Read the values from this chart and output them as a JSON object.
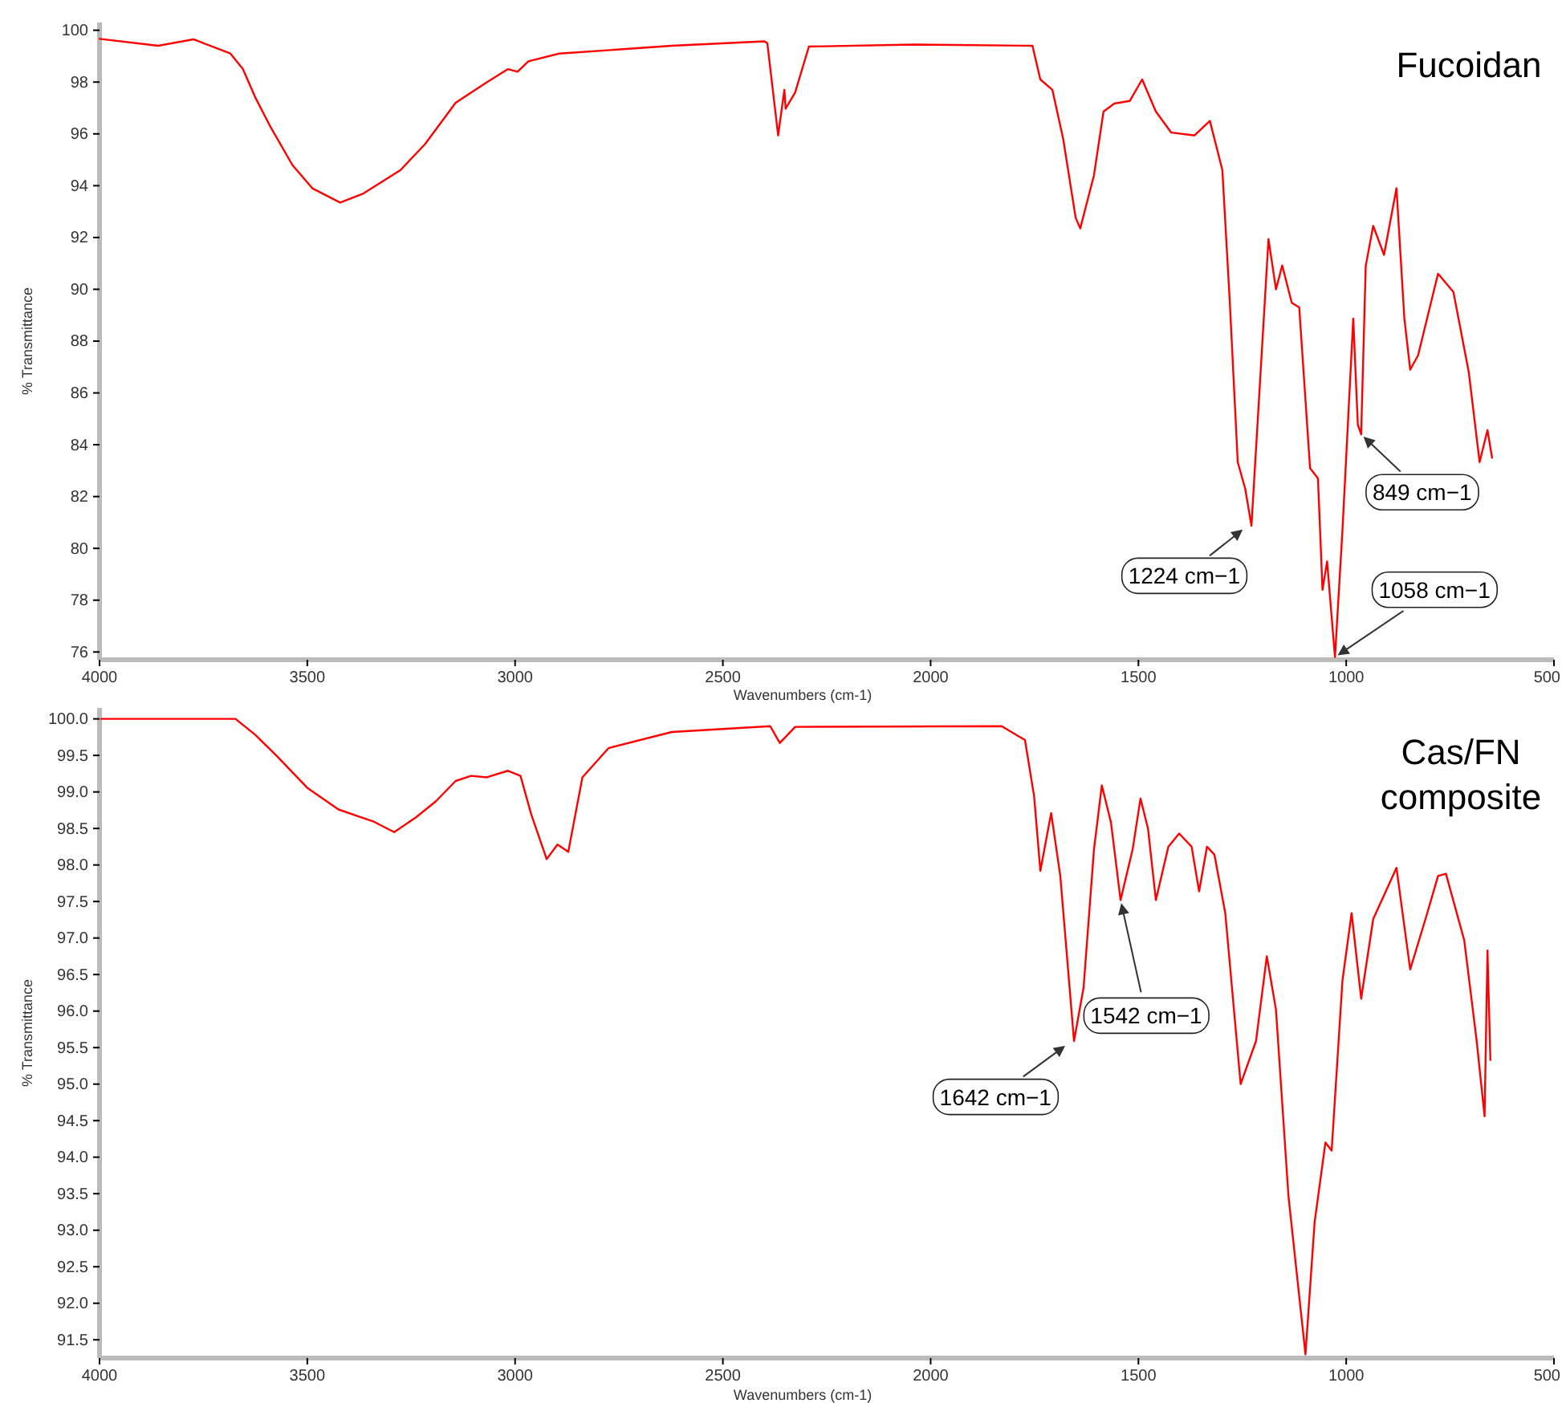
{
  "chart_data": [
    {
      "type": "line",
      "title": "Fucoidan",
      "xlabel": "Wavenumbers (cm-1)",
      "ylabel": "% Transmittance",
      "xlim": [
        4000,
        500
      ],
      "xticks": [
        4000,
        3500,
        3000,
        2500,
        2000,
        1500,
        1000,
        500
      ],
      "ylim": [
        75.7,
        100.3
      ],
      "yticks": [
        76,
        78,
        80,
        82,
        84,
        86,
        88,
        90,
        92,
        94,
        96,
        98,
        100
      ],
      "grid": false,
      "marker": "none",
      "line_style": "solid",
      "series": [
        {
          "color": "#ff0000",
          "x": [
            4000,
            3859,
            3774,
            3685,
            3655,
            3625,
            3588,
            3536,
            3488,
            3421,
            3365,
            3276,
            3217,
            3143,
            3068,
            3017,
            2994,
            2968,
            2894,
            2623,
            2400,
            2393,
            2367,
            2352,
            2349,
            2326,
            2293,
            2041,
            1755,
            1736,
            1707,
            1681,
            1651,
            1640,
            1607,
            1584,
            1558,
            1521,
            1491,
            1458,
            1421,
            1365,
            1328,
            1298,
            1280,
            1261,
            1243,
            1228,
            1206,
            1187,
            1169,
            1154,
            1131,
            1113,
            1087,
            1068,
            1057,
            1046,
            1027,
            1009,
            983,
            972,
            964,
            953,
            935,
            909,
            879,
            860,
            846,
            827,
            779,
            742,
            705,
            679,
            660,
            649
          ],
          "values": [
            99.67,
            99.4,
            99.65,
            99.1,
            98.5,
            97.4,
            96.25,
            94.8,
            93.9,
            93.35,
            93.7,
            94.6,
            95.6,
            97.2,
            97.99,
            98.5,
            98.4,
            98.8,
            99.1,
            99.4,
            99.57,
            99.5,
            95.94,
            97.7,
            96.97,
            97.6,
            99.37,
            99.45,
            99.4,
            98.1,
            97.7,
            95.8,
            92.76,
            92.35,
            94.4,
            96.86,
            97.17,
            97.27,
            98.1,
            96.86,
            96.05,
            95.94,
            96.5,
            94.6,
            89.48,
            83.33,
            82.3,
            80.87,
            86.8,
            91.94,
            90.0,
            90.92,
            89.48,
            89.3,
            83.1,
            82.7,
            78.4,
            79.5,
            75.8,
            80.7,
            88.87,
            84.77,
            84.4,
            90.9,
            92.45,
            91.33,
            93.9,
            88.87,
            86.9,
            87.45,
            90.6,
            89.9,
            86.8,
            83.33,
            84.56,
            83.5
          ]
        }
      ],
      "annotations": [
        {
          "text": "1224 cm−1",
          "x": 1243,
          "y": 80.8
        },
        {
          "text": "849 cm−1",
          "x": 964,
          "y": 84.4
        },
        {
          "text": "1058 cm−1",
          "x": 1027,
          "y": 75.8
        }
      ]
    },
    {
      "type": "line",
      "title": "Cas/FN composite",
      "xlabel": "Wavenumbers (cm-1)",
      "ylabel": "% Transmittance",
      "xlim": [
        4000,
        500
      ],
      "xticks": [
        4000,
        3500,
        3000,
        2500,
        2000,
        1500,
        1000,
        500
      ],
      "ylim": [
        91.25,
        100.15
      ],
      "yticks": [
        91.5,
        {
          "value": 92,
          "label": "92.0"
        },
        92.5,
        {
          "value": 93,
          "label": "93.0"
        },
        93.5,
        {
          "value": 94,
          "label": "94.0"
        },
        94.5,
        {
          "value": 95,
          "label": "95.0"
        },
        95.5,
        {
          "value": 96,
          "label": "96.0"
        },
        96.5,
        {
          "value": 97,
          "label": "97.0"
        },
        97.5,
        {
          "value": 98,
          "label": "98.0"
        },
        98.5,
        {
          "value": 99,
          "label": "99.0"
        },
        99.5,
        {
          "value": 100,
          "label": "100.0"
        }
      ],
      "grid": false,
      "marker": "none",
      "line_style": "solid",
      "series": [
        {
          "color": "#ff0000",
          "x": [
            3996,
            3673,
            3625,
            3573,
            3499,
            3425,
            3339,
            3291,
            3239,
            3191,
            3143,
            3106,
            3068,
            3017,
            2987,
            2961,
            2924,
            2898,
            2872,
            2838,
            2775,
            2623,
            2386,
            2363,
            2326,
            1829,
            1773,
            1751,
            1736,
            1710,
            1688,
            1655,
            1632,
            1607,
            1588,
            1566,
            1543,
            1514,
            1495,
            1477,
            1458,
            1428,
            1402,
            1372,
            1354,
            1335,
            1317,
            1291,
            1254,
            1217,
            1191,
            1169,
            1139,
            1098,
            1076,
            1050,
            1035,
            1009,
            987,
            964,
            935,
            879,
            846,
            805,
            779,
            760,
            716,
            686,
            667,
            660,
            653
          ],
          "values": [
            100.0,
            100.0,
            99.78,
            99.49,
            99.05,
            98.76,
            98.59,
            98.45,
            98.65,
            98.87,
            99.15,
            99.22,
            99.2,
            99.29,
            99.22,
            98.69,
            98.08,
            98.28,
            98.18,
            99.2,
            99.6,
            99.82,
            99.9,
            99.67,
            99.89,
            99.9,
            99.71,
            98.94,
            97.92,
            98.71,
            97.85,
            95.59,
            96.32,
            98.21,
            99.09,
            98.58,
            97.52,
            98.21,
            98.91,
            98.5,
            97.52,
            98.25,
            98.43,
            98.25,
            97.64,
            98.25,
            98.14,
            97.34,
            95.0,
            95.59,
            96.75,
            96.02,
            93.47,
            91.3,
            93.11,
            94.2,
            94.09,
            96.42,
            97.34,
            96.17,
            97.26,
            97.96,
            96.57,
            97.34,
            97.85,
            97.88,
            96.97,
            95.59,
            94.56,
            96.83,
            95.33
          ]
        }
      ],
      "annotations": [
        {
          "text": "1642 cm−1",
          "x": 1670,
          "y": 95.55
        },
        {
          "text": "1542 cm−1",
          "x": 1543,
          "y": 97.52
        }
      ]
    }
  ]
}
